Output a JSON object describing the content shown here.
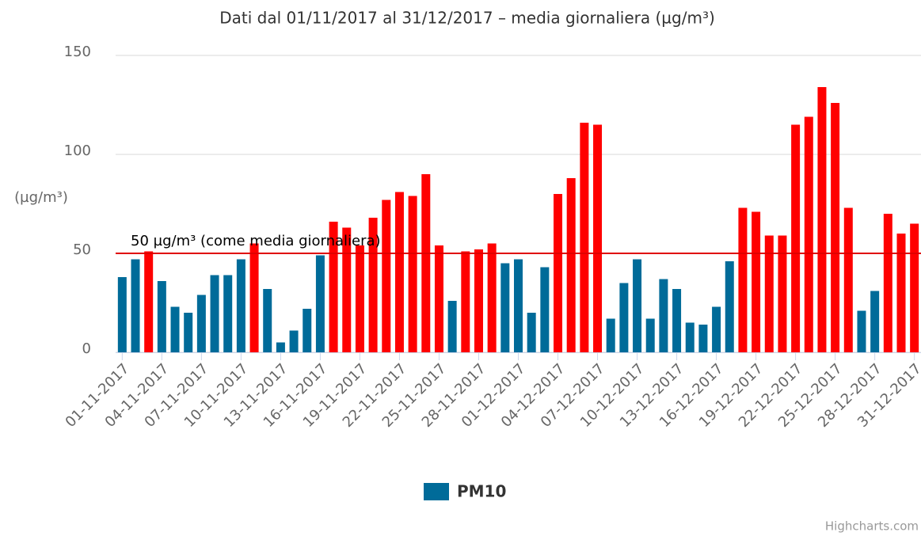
{
  "chart_data": {
    "type": "bar",
    "title": "Dati dal 01/11/2017 al 31/12/2017 – media giornaliera (µg/m³)",
    "y_axis_label": "(µg/m³)",
    "categories": [
      "01-11-2017",
      null,
      null,
      "04-11-2017",
      null,
      null,
      "07-11-2017",
      null,
      null,
      "10-11-2017",
      null,
      null,
      "13-11-2017",
      null,
      null,
      "16-11-2017",
      null,
      null,
      "19-11-2017",
      null,
      null,
      "22-11-2017",
      null,
      null,
      "25-11-2017",
      null,
      null,
      "28-11-2017",
      null,
      null,
      "01-12-2017",
      null,
      null,
      "04-12-2017",
      null,
      null,
      "07-12-2017",
      null,
      null,
      "10-12-2017",
      null,
      null,
      "13-12-2017",
      null,
      null,
      "16-12-2017",
      null,
      null,
      "19-12-2017",
      null,
      null,
      "22-12-2017",
      null,
      null,
      "25-12-2017",
      null,
      null,
      "28-12-2017",
      null,
      null,
      "31-12-2017"
    ],
    "series": [
      {
        "name": "PM10",
        "color": "#006b99",
        "values": [
          38,
          47,
          51,
          36,
          23,
          20,
          29,
          39,
          39,
          47,
          55,
          32,
          5,
          11,
          22,
          49,
          66,
          63,
          54,
          68,
          77,
          81,
          79,
          90,
          54,
          26,
          51,
          52,
          55,
          45,
          47,
          20,
          43,
          80,
          88,
          116,
          115,
          17,
          35,
          47,
          17,
          37,
          32,
          15,
          14,
          23,
          46,
          73,
          71,
          59,
          59,
          115,
          119,
          134,
          126,
          73,
          21,
          31,
          70,
          60,
          65
        ]
      }
    ],
    "threshold": {
      "value": 50,
      "label": "50 µg/m³ (come media giornaliera)",
      "color": "#e00000",
      "above_color": "#ff0000"
    },
    "ylim": [
      0,
      150
    ],
    "yticks": [
      0,
      50,
      100,
      150
    ],
    "grid": true,
    "credits": "Highcharts.com"
  }
}
